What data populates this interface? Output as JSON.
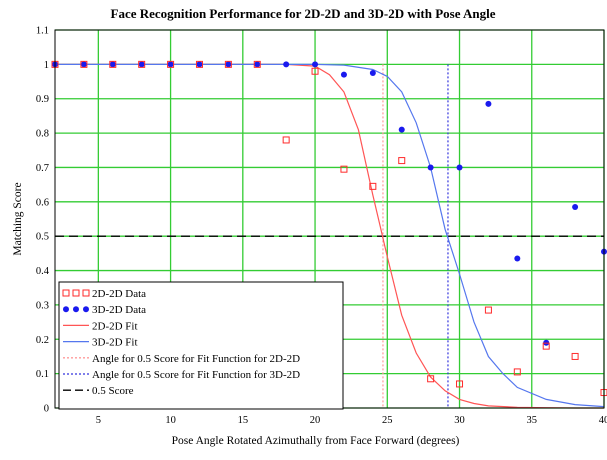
{
  "chart_data": {
    "type": "scatter",
    "title": "Face Recognition Performance for 2D-2D and 3D-2D with Pose Angle",
    "xlabel": "Pose Angle Rotated Azimuthally from Face Forward (degrees)",
    "ylabel": "Matching Score",
    "xlim": [
      2,
      40
    ],
    "ylim": [
      0,
      1.1
    ],
    "xticks": [
      5,
      10,
      15,
      20,
      25,
      30,
      35,
      40
    ],
    "yticks": [
      0,
      0.1,
      0.2,
      0.3,
      0.4,
      0.5,
      0.6,
      0.7,
      0.8,
      0.9,
      1,
      1.1
    ],
    "xtick_labels": [
      "5",
      "10",
      "15",
      "20",
      "25",
      "30",
      "35",
      "40"
    ],
    "ytick_labels": [
      "0",
      "0.1",
      "0.2",
      "0.3",
      "0.4",
      "0.5",
      "0.6",
      "0.7",
      "0.8",
      "0.9",
      "1",
      "1.1"
    ],
    "grid": true,
    "legend_position": "bottom-left",
    "colors": {
      "grid": "#33cc33",
      "series_2d": "#ff2a2a",
      "series_3d": "#1a1aee",
      "fit_2d": "#ff5555",
      "fit_3d": "#5577ee",
      "threshold": "#000000",
      "vline_2d": "#ff9999",
      "vline_3d": "#3333dd"
    },
    "series": [
      {
        "name": "2D-2D Data",
        "kind": "scatter",
        "marker": "open-square",
        "x": [
          2,
          4,
          6,
          8,
          10,
          12,
          14,
          16,
          18,
          20,
          22,
          24,
          26,
          28,
          30,
          32,
          34,
          36,
          38,
          40
        ],
        "y": [
          1,
          1,
          1,
          1,
          1,
          1,
          1,
          1,
          0.78,
          0.98,
          0.695,
          0.645,
          0.72,
          0.085,
          0.07,
          0.285,
          0.105,
          0.18,
          0.15,
          0.045
        ]
      },
      {
        "name": "3D-2D Data",
        "kind": "scatter",
        "marker": "filled-circle",
        "x": [
          2,
          4,
          6,
          8,
          10,
          12,
          14,
          16,
          18,
          20,
          22,
          24,
          26,
          28,
          30,
          32,
          34,
          36,
          38,
          40
        ],
        "y": [
          1,
          1,
          1,
          1,
          1,
          1,
          1,
          1,
          1,
          1,
          0.97,
          0.975,
          0.81,
          0.7,
          0.7,
          0.885,
          0.435,
          0.19,
          0.585,
          0.455
        ]
      },
      {
        "name": "2D-2D Fit",
        "kind": "line",
        "x": [
          2,
          4,
          6,
          8,
          10,
          12,
          14,
          16,
          18,
          20,
          21,
          22,
          23,
          24,
          24.5,
          25,
          26,
          27,
          28,
          29,
          30,
          31,
          32,
          34,
          36,
          38,
          40
        ],
        "y": [
          1,
          1,
          1,
          1,
          1,
          1,
          1,
          1,
          1,
          0.995,
          0.97,
          0.92,
          0.81,
          0.62,
          0.53,
          0.44,
          0.27,
          0.16,
          0.09,
          0.05,
          0.025,
          0.013,
          0.006,
          0.002,
          0.001,
          0,
          0
        ]
      },
      {
        "name": "3D-2D Fit",
        "kind": "line",
        "x": [
          2,
          4,
          6,
          8,
          10,
          12,
          14,
          16,
          18,
          20,
          22,
          24,
          25,
          26,
          27,
          28,
          29,
          30,
          31,
          32,
          33,
          34,
          36,
          38,
          40
        ],
        "y": [
          1,
          1,
          1,
          1,
          1,
          1,
          1,
          1,
          1,
          1,
          0.998,
          0.985,
          0.965,
          0.92,
          0.83,
          0.7,
          0.52,
          0.39,
          0.25,
          0.15,
          0.1,
          0.06,
          0.025,
          0.01,
          0.004
        ]
      },
      {
        "name": "Angle for 0.5 Score for Fit Function for 2D-2D",
        "kind": "vline",
        "x": 24.7
      },
      {
        "name": "Angle for 0.5 Score for Fit Function for 3D-2D",
        "kind": "vline",
        "x": 29.2
      },
      {
        "name": "0.5 Score",
        "kind": "hline",
        "y": 0.5
      }
    ]
  }
}
